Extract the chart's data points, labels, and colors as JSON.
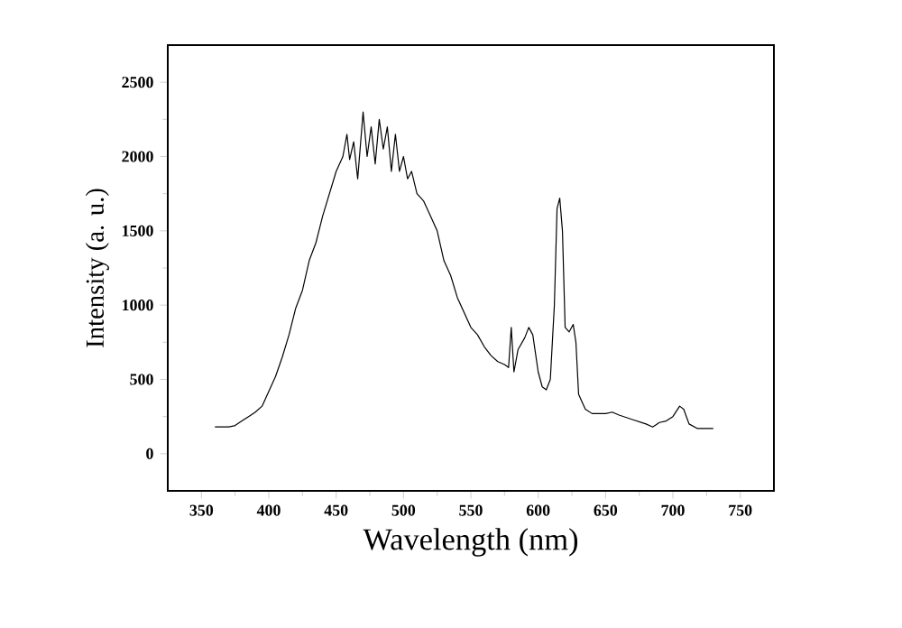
{
  "chart_data": {
    "type": "line",
    "xlabel": "Wavelength (nm)",
    "ylabel": "Intensity (a. u.)",
    "xlim": [
      325,
      775
    ],
    "xticks": [
      350,
      400,
      450,
      500,
      550,
      600,
      650,
      700,
      750
    ],
    "ylim": [
      -250,
      2750
    ],
    "yticks": [
      0,
      500,
      1000,
      1500,
      2000,
      2500
    ],
    "marker": "none",
    "line_style": "solid",
    "series": [
      {
        "color": "#000000",
        "x": [
          360,
          365,
          370,
          375,
          380,
          385,
          390,
          395,
          400,
          405,
          410,
          415,
          420,
          425,
          430,
          435,
          440,
          445,
          450,
          455,
          458,
          460,
          463,
          466,
          470,
          473,
          476,
          479,
          482,
          485,
          488,
          491,
          494,
          497,
          500,
          503,
          506,
          510,
          515,
          520,
          525,
          530,
          535,
          540,
          545,
          550,
          555,
          560,
          565,
          570,
          575,
          578,
          580,
          582,
          585,
          590,
          593,
          596,
          600,
          603,
          606,
          609,
          612,
          614,
          616,
          618,
          620,
          623,
          626,
          628,
          630,
          635,
          640,
          650,
          655,
          660,
          670,
          680,
          685,
          690,
          695,
          700,
          705,
          708,
          712,
          718,
          725,
          730
        ],
        "values": [
          180,
          180,
          180,
          190,
          220,
          250,
          280,
          320,
          420,
          520,
          650,
          800,
          980,
          1100,
          1300,
          1420,
          1600,
          1750,
          1900,
          2000,
          2150,
          1980,
          2100,
          1850,
          2300,
          2000,
          2200,
          1950,
          2250,
          2050,
          2200,
          1900,
          2150,
          1900,
          2000,
          1850,
          1900,
          1750,
          1700,
          1600,
          1500,
          1300,
          1200,
          1050,
          950,
          850,
          800,
          720,
          660,
          620,
          600,
          580,
          850,
          550,
          700,
          780,
          850,
          800,
          550,
          450,
          430,
          500,
          1000,
          1650,
          1720,
          1500,
          850,
          820,
          870,
          750,
          400,
          300,
          270,
          270,
          280,
          260,
          230,
          200,
          180,
          210,
          220,
          250,
          320,
          300,
          200,
          170,
          170,
          170
        ]
      }
    ]
  }
}
